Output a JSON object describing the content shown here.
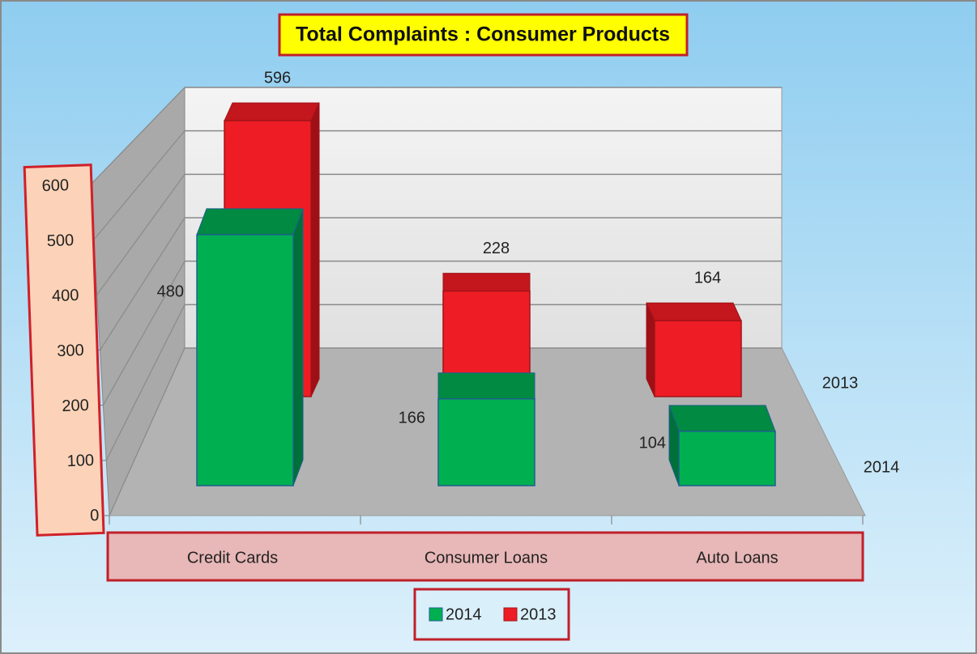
{
  "chart_data": {
    "type": "bar3d",
    "title": "Total Complaints : Consumer Products",
    "categories": [
      "Credit Cards",
      "Consumer Loans",
      "Auto Loans"
    ],
    "series": [
      {
        "name": "2014",
        "color": "#00b050",
        "values": [
          480,
          166,
          104
        ]
      },
      {
        "name": "2013",
        "color": "#ee1c24",
        "values": [
          596,
          228,
          164
        ]
      }
    ],
    "ylim": [
      0,
      600
    ],
    "yticks": [
      0,
      100,
      200,
      300,
      400,
      500,
      600
    ],
    "grid": true,
    "legend": "bottom"
  }
}
